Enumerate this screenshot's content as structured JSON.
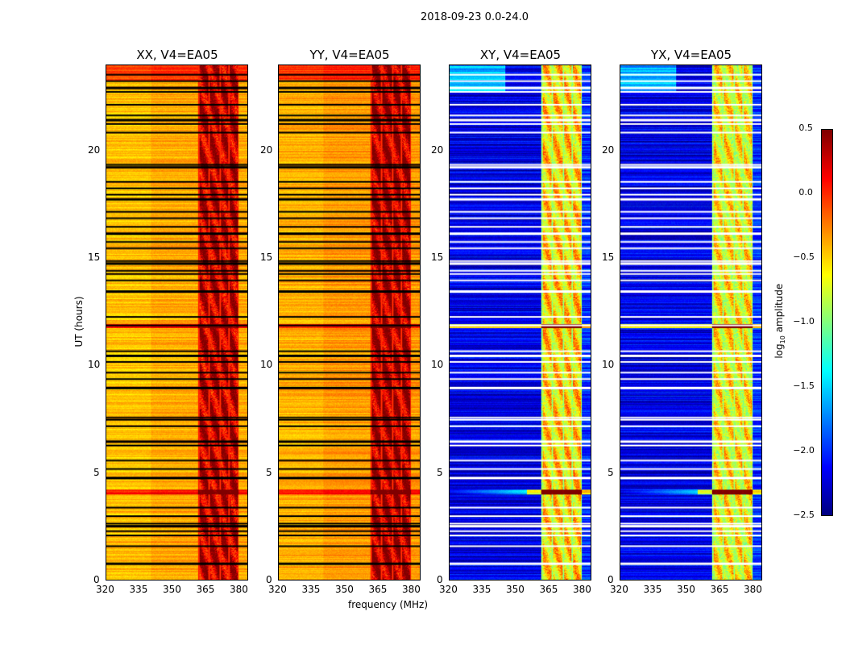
{
  "chart_data": {
    "type": "heatmap",
    "title": "2018-09-23 0.0-24.0",
    "xlabel": "frequency (MHz)",
    "ylabel": "UT (hours)",
    "xlim": [
      320,
      384
    ],
    "ylim": [
      0,
      24
    ],
    "xticks": [
      "320",
      "335",
      "350",
      "365",
      "380"
    ],
    "xtick_values": [
      320,
      335,
      350,
      365,
      380
    ],
    "yticks": [
      "0",
      "5",
      "10",
      "15",
      "20"
    ],
    "ytick_values": [
      0,
      5,
      10,
      15,
      20
    ],
    "panels": [
      {
        "title": "XX, V4=EA05",
        "baseline": -0.4,
        "band_level": 0.2,
        "flag_color": "#000000"
      },
      {
        "title": "YY, V4=EA05",
        "baseline": -0.35,
        "band_level": 0.25,
        "flag_color": "#000000"
      },
      {
        "title": "XY, V4=EA05",
        "baseline": -2.2,
        "band_level": -0.6,
        "flag_color": "#ffffff"
      },
      {
        "title": "YX, V4=EA05",
        "baseline": -2.2,
        "band_level": -0.7,
        "flag_color": "#ffffff"
      }
    ],
    "band_edges_mhz": [
      [
        362,
        366
      ],
      [
        367,
        371
      ],
      [
        372,
        375
      ],
      [
        376,
        379.5
      ]
    ],
    "flagged_hours": [
      0.8,
      1.6,
      2.1,
      2.3,
      2.55,
      2.65,
      3.0,
      3.4,
      4.8,
      5.2,
      5.6,
      6.3,
      6.5,
      7.2,
      7.5,
      7.6,
      9.0,
      9.4,
      9.7,
      10.2,
      10.5,
      10.7,
      11.9,
      12.3,
      13.5,
      14.0,
      14.3,
      14.45,
      14.8,
      14.9,
      15.5,
      15.8,
      16.2,
      16.5,
      16.9,
      17.2,
      17.8,
      18.0,
      18.3,
      18.6,
      19.3,
      19.4,
      20.9,
      21.3,
      21.5,
      21.7,
      22.2,
      22.8,
      23.0,
      23.3,
      23.6
    ],
    "colorbar": {
      "label": "log10 amplitude",
      "label_main": "log",
      "label_sub": "10",
      "label_rest": " amplitude",
      "range": [
        -2.5,
        0.5
      ],
      "ticks": [
        "0.5",
        "0.0",
        "−0.5",
        "−1.0",
        "−1.5",
        "−2.0",
        "−2.5"
      ],
      "tick_values": [
        0.5,
        0,
        -0.5,
        -1,
        -1.5,
        -2,
        -2.5
      ],
      "colormap": "jet"
    }
  }
}
